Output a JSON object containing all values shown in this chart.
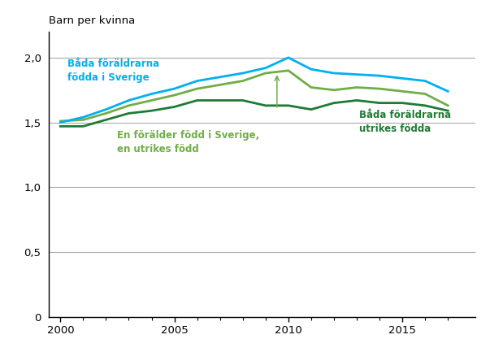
{
  "years": [
    2000,
    2001,
    2002,
    2003,
    2004,
    2005,
    2006,
    2007,
    2008,
    2009,
    2010,
    2011,
    2012,
    2013,
    2014,
    2015,
    2016,
    2017
  ],
  "both_sweden": [
    1.5,
    1.54,
    1.6,
    1.67,
    1.72,
    1.76,
    1.82,
    1.85,
    1.88,
    1.92,
    2.0,
    1.91,
    1.88,
    1.87,
    1.86,
    1.84,
    1.82,
    1.74
  ],
  "one_foreign": [
    1.51,
    1.52,
    1.57,
    1.63,
    1.67,
    1.71,
    1.76,
    1.79,
    1.82,
    1.88,
    1.9,
    1.77,
    1.75,
    1.77,
    1.76,
    1.74,
    1.72,
    1.63
  ],
  "both_foreign": [
    1.47,
    1.47,
    1.52,
    1.57,
    1.59,
    1.62,
    1.67,
    1.67,
    1.67,
    1.63,
    1.63,
    1.6,
    1.65,
    1.67,
    1.65,
    1.65,
    1.63,
    1.59
  ],
  "color_both_sweden": "#00b0f0",
  "color_one_foreign": "#70ad47",
  "color_both_foreign": "#1e7b34",
  "top_label": "Barn per kvinna",
  "ylim": [
    0,
    2.2
  ],
  "yticks": [
    0,
    0.5,
    1.0,
    1.5,
    2.0
  ],
  "ytick_labels": [
    "0",
    "0,5",
    "1,0",
    "1,5",
    "2,0"
  ],
  "xlim": [
    1999.5,
    2018.2
  ],
  "xticks": [
    2000,
    2005,
    2010,
    2015
  ],
  "hline_y": 1.5,
  "label_both_sweden": "Båda föräldrarna\nfödda i Sverige",
  "label_one_foreign": "En förälder född i Sverige,\nen utrikes född",
  "label_both_foreign": "Båda föräldrarna\nutrikes födda",
  "linewidth": 2.0
}
